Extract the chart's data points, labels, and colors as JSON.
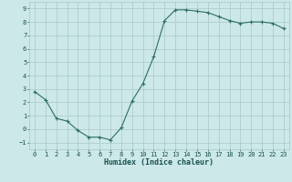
{
  "x": [
    0,
    1,
    2,
    3,
    4,
    5,
    6,
    7,
    8,
    9,
    10,
    11,
    12,
    13,
    14,
    15,
    16,
    17,
    18,
    19,
    20,
    21,
    22,
    23
  ],
  "y": [
    2.8,
    2.2,
    0.8,
    0.6,
    -0.1,
    -0.6,
    -0.6,
    -0.8,
    0.1,
    2.1,
    3.4,
    5.4,
    8.1,
    8.9,
    8.9,
    8.8,
    8.7,
    8.4,
    8.1,
    7.9,
    8.0,
    8.0,
    7.9,
    7.5
  ],
  "xlabel": "Humidex (Indice chaleur)",
  "xlim": [
    -0.5,
    23.5
  ],
  "ylim": [
    -1.5,
    9.5
  ],
  "yticks": [
    -1,
    0,
    1,
    2,
    3,
    4,
    5,
    6,
    7,
    8,
    9
  ],
  "xticks": [
    0,
    1,
    2,
    3,
    4,
    5,
    6,
    7,
    8,
    9,
    10,
    11,
    12,
    13,
    14,
    15,
    16,
    17,
    18,
    19,
    20,
    21,
    22,
    23
  ],
  "line_color": "#2d6e63",
  "marker_color": "#2d6e63",
  "bg_color": "#cce8e8",
  "grid_color": "#aac8c8",
  "text_color": "#1a5050"
}
